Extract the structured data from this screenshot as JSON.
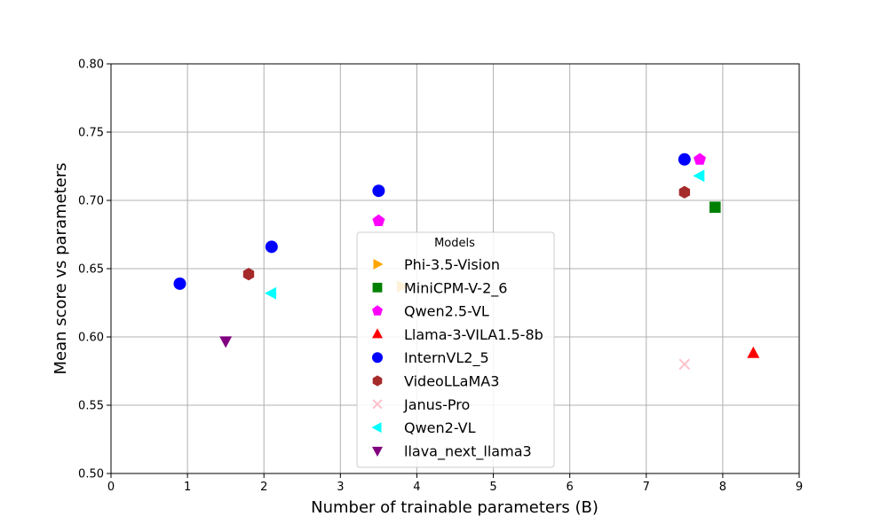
{
  "chart_data": {
    "type": "scatter",
    "title": "",
    "xlabel": "Number of trainable parameters (B)",
    "ylabel": "Mean score vs parameters",
    "xlim": [
      0,
      9
    ],
    "ylim": [
      0.5,
      0.8
    ],
    "xticks": [
      "0",
      "1",
      "2",
      "3",
      "4",
      "5",
      "6",
      "7",
      "8",
      "9"
    ],
    "yticks": [
      "0.50",
      "0.55",
      "0.60",
      "0.65",
      "0.70",
      "0.75",
      "0.80"
    ],
    "grid": true,
    "legend": {
      "title": "Models",
      "placement": "lower-center"
    },
    "series": [
      {
        "name": "Phi-3.5-Vision",
        "marker": "triangle-right",
        "color": "#FFA500",
        "points": [
          [
            3.8,
            0.637
          ]
        ]
      },
      {
        "name": "MiniCPM-V-2_6",
        "marker": "square",
        "color": "#008000",
        "points": [
          [
            7.9,
            0.695
          ]
        ]
      },
      {
        "name": "Qwen2.5-VL",
        "marker": "pentagon",
        "color": "#FF00FF",
        "points": [
          [
            3.5,
            0.685
          ],
          [
            7.7,
            0.73
          ]
        ]
      },
      {
        "name": "Llama-3-VILA1.5-8b",
        "marker": "triangle-up",
        "color": "#FF0000",
        "points": [
          [
            8.4,
            0.588
          ]
        ]
      },
      {
        "name": "InternVL2_5",
        "marker": "circle",
        "color": "#0000FF",
        "points": [
          [
            0.9,
            0.639
          ],
          [
            2.1,
            0.666
          ],
          [
            3.5,
            0.707
          ],
          [
            7.5,
            0.73
          ]
        ]
      },
      {
        "name": "VideoLLaMA3",
        "marker": "hexagon",
        "color": "#A52A2A",
        "points": [
          [
            1.8,
            0.646
          ],
          [
            7.5,
            0.706
          ]
        ]
      },
      {
        "name": "Janus-Pro",
        "marker": "x",
        "color": "#FFC0CB",
        "points": [
          [
            7.5,
            0.58
          ]
        ]
      },
      {
        "name": "Qwen2-VL",
        "marker": "triangle-left",
        "color": "#00FFFF",
        "points": [
          [
            2.1,
            0.632
          ],
          [
            7.7,
            0.718
          ]
        ]
      },
      {
        "name": "llava_next_llama3",
        "marker": "triangle-down",
        "color": "#800080",
        "points": [
          [
            1.5,
            0.597
          ]
        ]
      }
    ]
  }
}
